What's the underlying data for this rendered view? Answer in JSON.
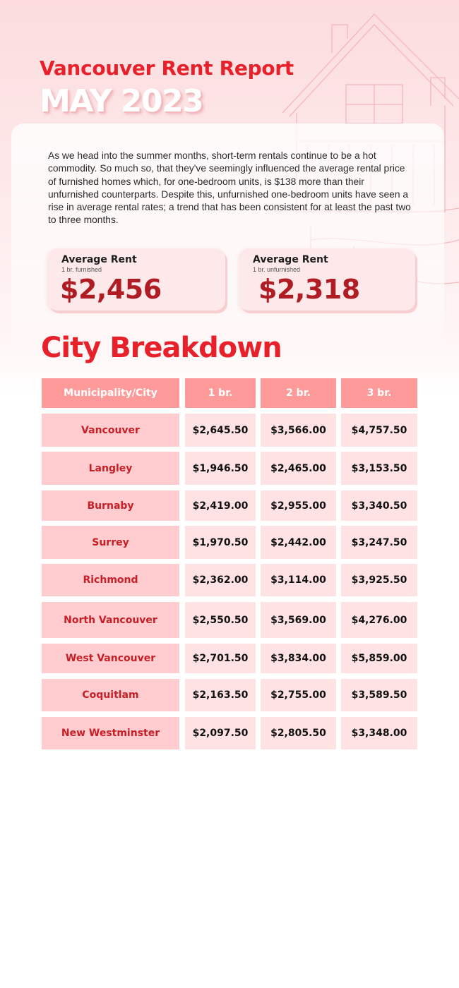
{
  "report": {
    "title": "Vancouver Rent Report",
    "subtitle": "MAY 2023",
    "intro": "As we head into the summer months, short-term rentals continue to be a hot commodity. So much so, that they've seemingly influenced the average rental price of furnished homes which, for one-bedroom units, is $138 more than their unfurnished counterparts. Despite this, unfurnished one-bedroom units have seen a rise in average rental rates; a trend that has been consistent for at least the past two to three months."
  },
  "stats": [
    {
      "label": "Average Rent",
      "sub": "1 br. furnished",
      "value": "$2,456"
    },
    {
      "label": "Average Rent",
      "sub": "1 br. unfurnished",
      "value": "$2,318"
    }
  ],
  "breakdown": {
    "title": "City Breakdown",
    "headers": [
      "Municipality/City",
      "1 br.",
      "2 br.",
      "3 br."
    ],
    "rows": [
      [
        "Vancouver",
        "$2,645.50",
        "$3,566.00",
        "$4,757.50"
      ],
      [
        "Langley",
        "$1,946.50",
        "$2,465.00",
        "$3,153.50"
      ],
      [
        "Burnaby",
        "$2,419.00",
        "$2,955.00",
        "$3,340.50"
      ],
      [
        "Surrey",
        "$1,970.50",
        "$2,442.00",
        "$3,247.50"
      ],
      [
        "Richmond",
        "$2,362.00",
        "$3,114.00",
        "$3,925.50"
      ],
      [
        "North Vancouver",
        "$2,550.50",
        "$3,569.00",
        "$4,276.00"
      ],
      [
        "West Vancouver",
        "$2,701.50",
        "$3,834.00",
        "$5,859.00"
      ],
      [
        "Coquitlam",
        "$2,163.50",
        "$2,755.00",
        "$3,589.50"
      ],
      [
        "New Westminster",
        "$2,097.50",
        "$2,805.50",
        "$3,348.00"
      ]
    ]
  },
  "colors": {
    "accent": "#e8202a",
    "dark_red": "#b01c24",
    "header_fill": "#ff9a9b",
    "city_fill": "#ffcdcf",
    "value_fill": "#ffe2e3"
  }
}
